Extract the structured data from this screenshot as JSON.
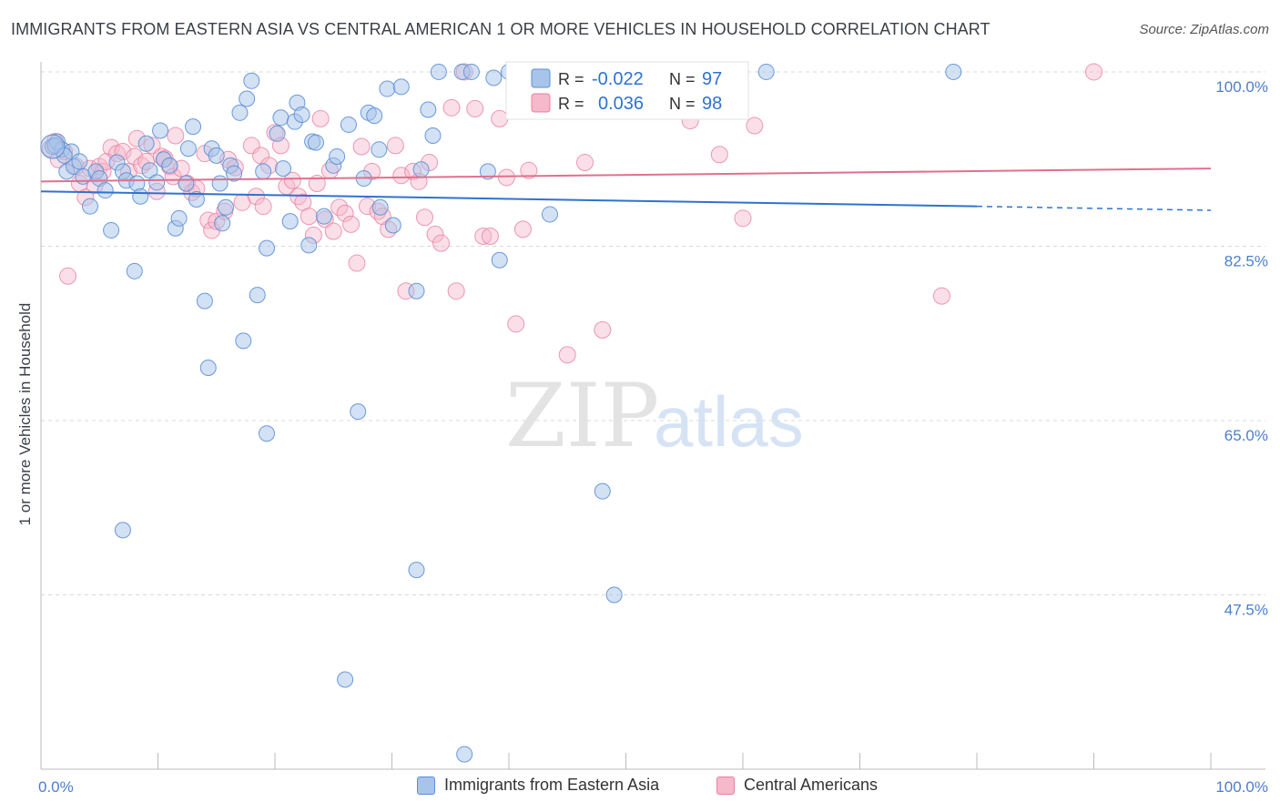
{
  "title": "IMMIGRANTS FROM EASTERN ASIA VS CENTRAL AMERICAN 1 OR MORE VEHICLES IN HOUSEHOLD CORRELATION CHART",
  "source": "Source: ZipAtlas.com",
  "watermark": {
    "zip": "ZIP",
    "atlas": "atlas"
  },
  "colors": {
    "blue_fill": "#a8c4ea",
    "blue_stroke": "#5b8fd6",
    "blue_line": "#2f72d0",
    "pink_fill": "#f6b8cb",
    "pink_stroke": "#e8809f",
    "pink_line": "#e0708f",
    "axis_text": "#4a7fcf",
    "grid": "#d8d8d8"
  },
  "legend": {
    "r_label": "R =",
    "n_label": "N =",
    "blue": {
      "r": "-0.022",
      "n": "97"
    },
    "pink": {
      "r": "0.036",
      "n": "98"
    }
  },
  "chart_data": {
    "type": "scatter",
    "title": "IMMIGRANTS FROM EASTERN ASIA VS CENTRAL AMERICAN 1 OR MORE VEHICLES IN HOUSEHOLD CORRELATION CHART",
    "xlabel": "",
    "ylabel": "1 or more Vehicles in Household",
    "xlim": [
      0,
      100
    ],
    "ylim": [
      30,
      101
    ],
    "x_tick_labels": [
      "0.0%",
      "100.0%"
    ],
    "y_ticks": [
      47.5,
      65.0,
      82.5,
      100.0
    ],
    "y_tick_labels": [
      "47.5%",
      "65.0%",
      "82.5%",
      "100.0%"
    ],
    "grid": true,
    "legend_position": "top-center",
    "series": [
      {
        "name": "Immigrants from Eastern Asia",
        "color": "#5b8fd6",
        "trend": {
          "x": [
            0,
            80,
            100
          ],
          "y": [
            88.0,
            86.5,
            86.1
          ],
          "solid_until": 80
        },
        "points": [
          [
            1.0,
            92.5
          ],
          [
            1.4,
            93.0
          ],
          [
            1.8,
            92.2
          ],
          [
            2.2,
            90.0
          ],
          [
            2.6,
            92.0
          ],
          [
            2.8,
            90.5
          ],
          [
            3.3,
            91.0
          ],
          [
            3.6,
            89.5
          ],
          [
            4.2,
            86.5
          ],
          [
            4.7,
            90.0
          ],
          [
            5.0,
            89.3
          ],
          [
            5.5,
            88.1
          ],
          [
            6.0,
            84.1
          ],
          [
            6.5,
            90.9
          ],
          [
            7.0,
            90.0
          ],
          [
            7.3,
            89.1
          ],
          [
            8.2,
            88.8
          ],
          [
            8.0,
            80.0
          ],
          [
            8.5,
            87.5
          ],
          [
            9.0,
            92.8
          ],
          [
            9.3,
            90.1
          ],
          [
            9.9,
            88.9
          ],
          [
            10.2,
            94.1
          ],
          [
            10.5,
            91.2
          ],
          [
            11.0,
            90.6
          ],
          [
            11.5,
            84.3
          ],
          [
            11.8,
            85.3
          ],
          [
            12.4,
            88.8
          ],
          [
            12.6,
            92.3
          ],
          [
            13.0,
            94.5
          ],
          [
            13.3,
            87.2
          ],
          [
            14.0,
            77.0
          ],
          [
            14.3,
            70.3
          ],
          [
            14.6,
            92.3
          ],
          [
            15.0,
            91.6
          ],
          [
            15.3,
            88.8
          ],
          [
            15.5,
            84.8
          ],
          [
            15.8,
            86.4
          ],
          [
            16.2,
            90.6
          ],
          [
            16.5,
            89.8
          ],
          [
            17.0,
            95.9
          ],
          [
            17.3,
            73.0
          ],
          [
            17.6,
            97.3
          ],
          [
            18.0,
            99.1
          ],
          [
            18.5,
            77.6
          ],
          [
            19.0,
            90.0
          ],
          [
            19.3,
            82.3
          ],
          [
            19.3,
            63.7
          ],
          [
            20.2,
            93.8
          ],
          [
            20.5,
            95.4
          ],
          [
            20.7,
            90.3
          ],
          [
            21.3,
            85.0
          ],
          [
            21.7,
            95.0
          ],
          [
            21.9,
            96.9
          ],
          [
            22.3,
            95.7
          ],
          [
            22.9,
            82.6
          ],
          [
            23.2,
            93.0
          ],
          [
            23.5,
            92.9
          ],
          [
            24.2,
            85.5
          ],
          [
            25.0,
            90.6
          ],
          [
            25.3,
            91.5
          ],
          [
            26.0,
            39.0
          ],
          [
            26.3,
            94.7
          ],
          [
            27.1,
            65.9
          ],
          [
            27.6,
            89.3
          ],
          [
            28.0,
            95.9
          ],
          [
            28.5,
            95.6
          ],
          [
            28.9,
            92.2
          ],
          [
            29.0,
            86.4
          ],
          [
            29.6,
            98.3
          ],
          [
            30.1,
            84.6
          ],
          [
            30.8,
            98.5
          ],
          [
            32.1,
            78.0
          ],
          [
            32.1,
            50.0
          ],
          [
            32.5,
            90.2
          ],
          [
            33.1,
            96.2
          ],
          [
            33.5,
            93.6
          ],
          [
            34.0,
            100.0
          ],
          [
            36.0,
            100.0
          ],
          [
            36.2,
            31.5
          ],
          [
            36.8,
            100.0
          ],
          [
            38.2,
            90.0
          ],
          [
            38.7,
            99.4
          ],
          [
            39.2,
            81.1
          ],
          [
            40.0,
            100.0
          ],
          [
            42.0,
            100.0
          ],
          [
            42.5,
            100.0
          ],
          [
            43.5,
            85.7
          ],
          [
            46.0,
            100.0
          ],
          [
            48.0,
            57.9
          ],
          [
            49.0,
            47.5
          ],
          [
            53.0,
            100.0
          ],
          [
            62.0,
            100.0
          ],
          [
            78.0,
            100.0
          ],
          [
            7.0,
            54.0
          ],
          [
            1.2,
            92.6
          ],
          [
            2.0,
            91.6
          ]
        ]
      },
      {
        "name": "Central Americans",
        "color": "#e8809f",
        "trend": {
          "x": [
            0,
            100
          ],
          "y": [
            89.0,
            90.3
          ],
          "solid_until": 100
        },
        "points": [
          [
            0.8,
            92.3
          ],
          [
            1.2,
            93.0
          ],
          [
            1.5,
            91.2
          ],
          [
            2.0,
            92.0
          ],
          [
            2.3,
            79.5
          ],
          [
            3.0,
            90.5
          ],
          [
            3.3,
            88.8
          ],
          [
            3.8,
            87.4
          ],
          [
            4.2,
            90.3
          ],
          [
            4.6,
            88.6
          ],
          [
            5.0,
            90.5
          ],
          [
            5.3,
            90.0
          ],
          [
            5.6,
            91.0
          ],
          [
            6.0,
            92.4
          ],
          [
            6.5,
            91.8
          ],
          [
            7.0,
            92.0
          ],
          [
            7.5,
            90.0
          ],
          [
            8.0,
            91.5
          ],
          [
            8.2,
            93.3
          ],
          [
            8.6,
            90.6
          ],
          [
            9.0,
            91.0
          ],
          [
            9.5,
            92.6
          ],
          [
            9.9,
            88.0
          ],
          [
            10.3,
            91.5
          ],
          [
            10.6,
            91.3
          ],
          [
            11.0,
            90.5
          ],
          [
            11.3,
            89.5
          ],
          [
            11.5,
            93.6
          ],
          [
            12.0,
            90.3
          ],
          [
            12.5,
            88.8
          ],
          [
            12.9,
            87.9
          ],
          [
            13.3,
            88.3
          ],
          [
            14.0,
            91.8
          ],
          [
            14.3,
            85.1
          ],
          [
            14.6,
            84.1
          ],
          [
            15.0,
            85.0
          ],
          [
            15.7,
            86.0
          ],
          [
            16.0,
            91.2
          ],
          [
            16.6,
            90.4
          ],
          [
            17.2,
            86.9
          ],
          [
            18.0,
            92.6
          ],
          [
            18.4,
            87.5
          ],
          [
            18.8,
            91.6
          ],
          [
            19.0,
            86.5
          ],
          [
            19.5,
            90.6
          ],
          [
            20.0,
            93.9
          ],
          [
            20.5,
            92.6
          ],
          [
            21.0,
            88.5
          ],
          [
            21.5,
            89.1
          ],
          [
            22.0,
            87.5
          ],
          [
            22.4,
            86.9
          ],
          [
            22.9,
            85.5
          ],
          [
            23.3,
            83.6
          ],
          [
            23.6,
            88.8
          ],
          [
            23.9,
            95.3
          ],
          [
            24.3,
            85.2
          ],
          [
            24.7,
            90.1
          ],
          [
            25.0,
            84.0
          ],
          [
            25.5,
            86.4
          ],
          [
            26.0,
            85.8
          ],
          [
            26.5,
            84.7
          ],
          [
            27.0,
            80.8
          ],
          [
            27.4,
            92.5
          ],
          [
            27.9,
            86.5
          ],
          [
            28.3,
            90.0
          ],
          [
            28.8,
            86.0
          ],
          [
            29.2,
            85.5
          ],
          [
            29.7,
            84.2
          ],
          [
            30.3,
            92.6
          ],
          [
            30.8,
            89.6
          ],
          [
            31.2,
            78.0
          ],
          [
            31.8,
            90.0
          ],
          [
            32.3,
            89.0
          ],
          [
            32.8,
            85.4
          ],
          [
            33.2,
            90.9
          ],
          [
            33.7,
            83.7
          ],
          [
            34.2,
            82.8
          ],
          [
            35.1,
            96.4
          ],
          [
            35.5,
            78.0
          ],
          [
            36.2,
            100.0
          ],
          [
            37.1,
            96.3
          ],
          [
            37.8,
            83.5
          ],
          [
            38.4,
            83.5
          ],
          [
            39.2,
            95.3
          ],
          [
            39.8,
            89.4
          ],
          [
            40.6,
            74.7
          ],
          [
            41.2,
            84.2
          ],
          [
            41.7,
            90.1
          ],
          [
            44.0,
            97.5
          ],
          [
            45.0,
            71.6
          ],
          [
            46.5,
            90.9
          ],
          [
            48.0,
            74.1
          ],
          [
            55.5,
            95.1
          ],
          [
            58.0,
            91.7
          ],
          [
            60.0,
            85.3
          ],
          [
            61.0,
            94.6
          ],
          [
            77.0,
            77.5
          ],
          [
            90.0,
            100.0
          ]
        ]
      }
    ]
  },
  "legend_bottom": {
    "blue_label": "Immigrants from Eastern Asia",
    "pink_label": "Central Americans"
  }
}
